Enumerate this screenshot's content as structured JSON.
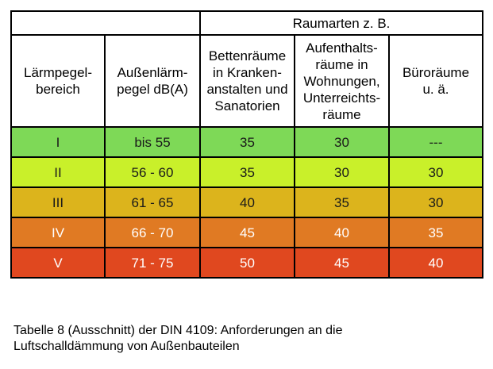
{
  "table": {
    "group_header": "Raumarten z. B.",
    "headers": [
      "Lärmpegel-\nbereich",
      "Außenlärm-\npegel dB(A)",
      "Bettenräume\nin Kranken-\nanstalten und\nSanatorien",
      "Aufenthalts-\nräume in\nWohnungen,\nUnterreichts-\nräume",
      "Büroräume\nu. ä."
    ],
    "rows": [
      {
        "cells": [
          "I",
          "bis 55",
          "35",
          "30",
          "---"
        ],
        "color": "#7ed957"
      },
      {
        "cells": [
          "II",
          "56 - 60",
          "35",
          "30",
          "30"
        ],
        "color": "#c9f02a"
      },
      {
        "cells": [
          "III",
          "61 - 65",
          "40",
          "35",
          "30"
        ],
        "color": "#dcb41c"
      },
      {
        "cells": [
          "IV",
          "66 - 70",
          "45",
          "40",
          "35"
        ],
        "color": "#e07a23"
      },
      {
        "cells": [
          "V",
          "71 - 75",
          "50",
          "45",
          "40"
        ],
        "color": "#e0481f"
      }
    ]
  },
  "caption": {
    "line1": "Tabelle 8 (Ausschnitt) der DIN 4109: Anforderungen an die",
    "line2": "Luftschalldämmung von Außenbauteilen"
  }
}
